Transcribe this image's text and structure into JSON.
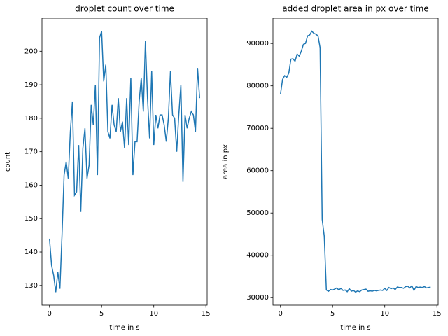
{
  "chart_data": [
    {
      "type": "line",
      "title": "droplet count over time",
      "xlabel": "time in s",
      "ylabel": "count",
      "color": "#1f77b4",
      "x": [
        0,
        0.2,
        0.4,
        0.6,
        0.8,
        1,
        1.2,
        1.4,
        1.6,
        1.8,
        2,
        2.2,
        2.4,
        2.6,
        2.8,
        3,
        3.2,
        3.4,
        3.6,
        3.8,
        4,
        4.2,
        4.4,
        4.6,
        4.8,
        5,
        5.2,
        5.4,
        5.6,
        5.8,
        6,
        6.2,
        6.4,
        6.6,
        6.8,
        7,
        7.2,
        7.4,
        7.6,
        7.8,
        8,
        8.2,
        8.4,
        8.6,
        8.8,
        9,
        9.2,
        9.4,
        9.6,
        9.8,
        10,
        10.2,
        10.4,
        10.6,
        10.8,
        11,
        11.2,
        11.4,
        11.6,
        11.8,
        12,
        12.2,
        12.4,
        12.6,
        12.8,
        13,
        13.2,
        13.4,
        13.6,
        13.8,
        14,
        14.2,
        14.4
      ],
      "values": [
        144,
        136,
        133,
        128,
        134,
        129,
        145,
        163,
        167,
        162,
        176,
        185,
        157,
        158,
        172,
        152,
        171,
        177,
        162,
        166,
        184,
        178,
        190,
        163,
        204,
        206,
        191,
        196,
        176,
        174,
        184,
        178,
        176,
        186,
        176,
        179,
        171,
        186,
        172,
        192,
        163,
        173,
        173,
        185,
        192,
        182,
        203,
        186,
        174,
        194,
        172,
        181,
        177,
        181,
        181,
        178,
        173,
        180,
        194,
        181,
        180,
        170,
        181,
        190,
        161,
        181,
        177,
        180,
        182,
        181,
        176,
        195,
        186
      ],
      "xlim": [
        -0.72,
        15.12
      ],
      "ylim": [
        124.1,
        209.9
      ],
      "xticks": [
        0,
        5,
        10,
        15
      ],
      "yticks": [
        130,
        140,
        150,
        160,
        170,
        180,
        190,
        200
      ]
    },
    {
      "type": "line",
      "title": "added droplet area in px over time",
      "xlabel": "time in s",
      "ylabel": "area in px",
      "color": "#1f77b4",
      "x": [
        0,
        0.2,
        0.4,
        0.6,
        0.8,
        1,
        1.2,
        1.4,
        1.6,
        1.8,
        2,
        2.2,
        2.4,
        2.6,
        2.8,
        3,
        3.2,
        3.4,
        3.6,
        3.8,
        4,
        4.2,
        4.4,
        4.6,
        4.8,
        5,
        5.2,
        5.4,
        5.6,
        5.8,
        6,
        6.2,
        6.4,
        6.6,
        6.8,
        7,
        7.2,
        7.4,
        7.6,
        7.8,
        8,
        8.2,
        8.4,
        8.6,
        8.8,
        9,
        9.2,
        9.4,
        9.6,
        9.8,
        10,
        10.2,
        10.4,
        10.6,
        10.8,
        11,
        11.2,
        11.4,
        11.6,
        11.8,
        12,
        12.2,
        12.4,
        12.6,
        12.8,
        13,
        13.2,
        13.4,
        13.6,
        13.8,
        14,
        14.2,
        14.4
      ],
      "values": [
        78000,
        81500,
        82400,
        82000,
        83000,
        86300,
        86400,
        85800,
        87500,
        87000,
        88200,
        89800,
        90000,
        91800,
        92000,
        92900,
        92400,
        92200,
        91800,
        89000,
        48500,
        44500,
        31800,
        31500,
        31900,
        31800,
        32000,
        32300,
        31800,
        32200,
        31700,
        31800,
        31400,
        32100,
        31500,
        31700,
        31300,
        31600,
        31400,
        31800,
        31900,
        32000,
        31500,
        31600,
        31500,
        31700,
        31600,
        31700,
        31800,
        31700,
        32200,
        31700,
        32400,
        32100,
        32300,
        31900,
        32500,
        32400,
        32400,
        32200,
        32600,
        32700,
        32300,
        32800,
        31700,
        32600,
        32400,
        32500,
        32400,
        32600,
        32300,
        32400,
        32500
      ],
      "xlim": [
        -0.72,
        15.12
      ],
      "ylim": [
        28220,
        95980
      ],
      "xticks": [
        0,
        5,
        10,
        15
      ],
      "yticks": [
        30000,
        40000,
        50000,
        60000,
        70000,
        80000,
        90000
      ]
    }
  ]
}
